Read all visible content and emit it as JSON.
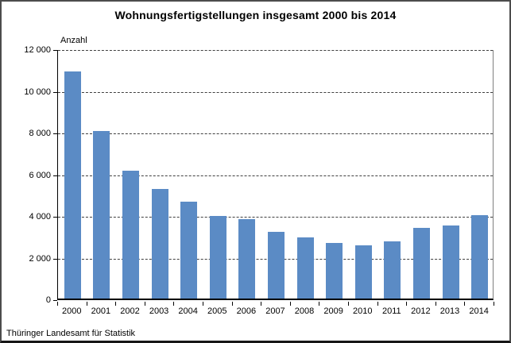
{
  "source": "Thüringer Landesamt für Statistik",
  "chart_data": {
    "type": "bar",
    "title": "Wohnungsfertigstellungen insgesamt 2000 bis 2014",
    "xlabel": "",
    "ylabel": "Anzahl",
    "categories": [
      "2000",
      "2001",
      "2002",
      "2003",
      "2004",
      "2005",
      "2006",
      "2007",
      "2008",
      "2009",
      "2010",
      "2011",
      "2012",
      "2013",
      "2014"
    ],
    "values": [
      10900,
      8050,
      6150,
      5250,
      4650,
      3950,
      3800,
      3200,
      2950,
      2650,
      2550,
      2750,
      3400,
      3500,
      4000
    ],
    "ylim": [
      0,
      12000
    ],
    "ytick_interval": 2000,
    "ytick_labels": [
      "0",
      "2 000",
      "4 000",
      "6 000",
      "8 000",
      "10 000",
      "12 000"
    ],
    "grid": "horizontal-dashed",
    "legend": null
  },
  "colors": {
    "bar": "#5b8bc5",
    "grid": "#3f3f3f",
    "axis": "#000000",
    "background": "#ffffff",
    "frame_border": "#4c4c4c",
    "text": "#000000"
  }
}
